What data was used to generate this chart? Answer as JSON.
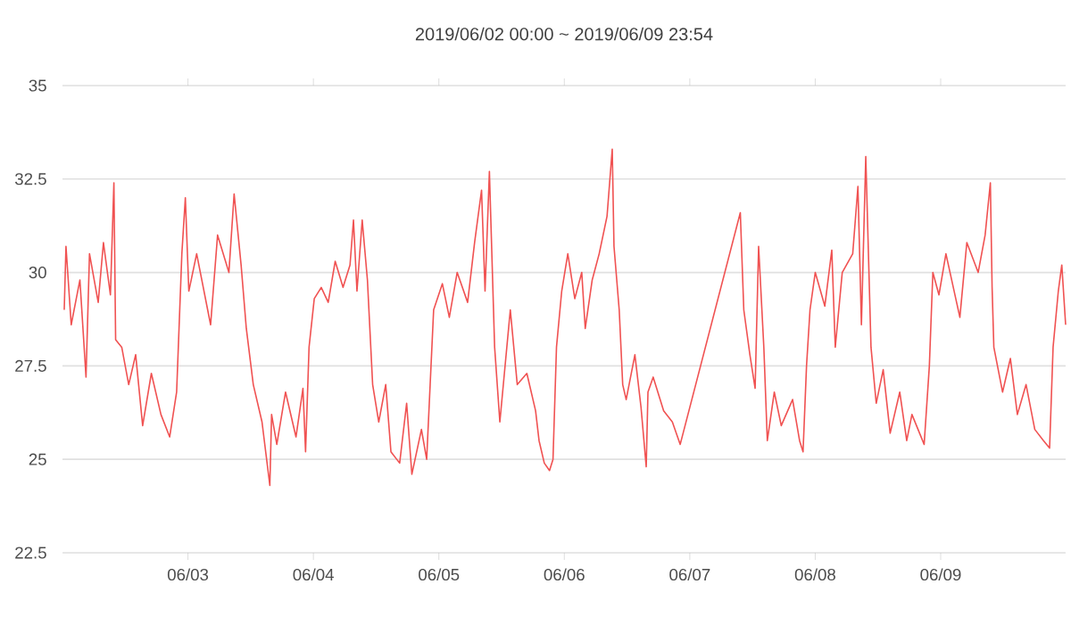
{
  "chart_data": {
    "type": "line",
    "title": "2019/06/02 00:00 ~ 2019/06/09 23:54",
    "xlim": [
      "2019-06-02T00:00",
      "2019-06-09T23:54"
    ],
    "xticks": [
      {
        "value": "2019-06-03T00:00",
        "label": "06/03"
      },
      {
        "value": "2019-06-04T00:00",
        "label": "06/04"
      },
      {
        "value": "2019-06-05T00:00",
        "label": "06/05"
      },
      {
        "value": "2019-06-06T00:00",
        "label": "06/06"
      },
      {
        "value": "2019-06-07T00:00",
        "label": "06/07"
      },
      {
        "value": "2019-06-08T00:00",
        "label": "06/08"
      },
      {
        "value": "2019-06-09T00:00",
        "label": "06/09"
      }
    ],
    "ylim": [
      22.5,
      35
    ],
    "yticks": [
      22.5,
      25,
      27.5,
      30,
      32.5,
      35
    ],
    "grid": "y",
    "series": [
      {
        "color": "#f05252",
        "x": [
          "2019-06-02T00:20",
          "2019-06-02T00:40",
          "2019-06-02T01:40",
          "2019-06-02T03:20",
          "2019-06-02T04:30",
          "2019-06-02T05:10",
          "2019-06-02T06:50",
          "2019-06-02T07:50",
          "2019-06-02T09:10",
          "2019-06-02T09:50",
          "2019-06-02T10:10",
          "2019-06-02T11:20",
          "2019-06-02T12:40",
          "2019-06-02T14:00",
          "2019-06-02T15:20",
          "2019-06-02T17:00",
          "2019-06-02T18:50",
          "2019-06-02T20:30",
          "2019-06-02T21:50",
          "2019-06-02T22:50",
          "2019-06-02T23:30",
          "2019-06-03T00:10",
          "2019-06-03T01:40",
          "2019-06-03T04:20",
          "2019-06-03T05:40",
          "2019-06-03T07:50",
          "2019-06-03T08:50",
          "2019-06-03T10:10",
          "2019-06-03T11:10",
          "2019-06-03T12:30",
          "2019-06-03T14:10",
          "2019-06-03T15:40",
          "2019-06-03T16:00",
          "2019-06-03T17:00",
          "2019-06-03T18:40",
          "2019-06-03T20:40",
          "2019-06-03T22:00",
          "2019-06-03T22:30",
          "2019-06-03T23:10",
          "2019-06-04T00:10",
          "2019-06-04T01:30",
          "2019-06-04T02:50",
          "2019-06-04T04:10",
          "2019-06-04T05:40",
          "2019-06-04T07:00",
          "2019-06-04T07:40",
          "2019-06-04T08:20",
          "2019-06-04T09:20",
          "2019-06-04T10:20",
          "2019-06-04T11:20",
          "2019-06-04T12:30",
          "2019-06-04T13:50",
          "2019-06-04T14:50",
          "2019-06-04T16:30",
          "2019-06-04T17:50",
          "2019-06-04T18:50",
          "2019-06-04T20:40",
          "2019-06-04T21:40",
          "2019-06-04T22:20",
          "2019-06-04T23:00",
          "2019-06-05T00:40",
          "2019-06-05T02:00",
          "2019-06-05T03:30",
          "2019-06-05T05:30",
          "2019-06-05T06:50",
          "2019-06-05T08:10",
          "2019-06-05T08:50",
          "2019-06-05T09:40",
          "2019-06-05T10:40",
          "2019-06-05T11:40",
          "2019-06-05T13:40",
          "2019-06-05T15:00",
          "2019-06-05T16:50",
          "2019-06-05T18:30",
          "2019-06-05T19:10",
          "2019-06-05T20:10",
          "2019-06-05T21:10",
          "2019-06-05T21:50",
          "2019-06-05T22:30",
          "2019-06-05T23:30",
          "2019-06-06T00:40",
          "2019-06-06T02:00",
          "2019-06-06T03:20",
          "2019-06-06T04:00",
          "2019-06-06T05:20",
          "2019-06-06T06:40",
          "2019-06-06T08:10",
          "2019-06-06T09:10",
          "2019-06-06T09:30",
          "2019-06-06T10:30",
          "2019-06-06T11:10",
          "2019-06-06T11:50",
          "2019-06-06T13:30",
          "2019-06-06T14:40",
          "2019-06-06T15:40",
          "2019-06-06T16:00",
          "2019-06-06T17:00",
          "2019-06-06T19:00",
          "2019-06-06T20:40",
          "2019-06-06T22:10",
          "2019-06-07T09:40",
          "2019-06-07T10:20",
          "2019-06-07T11:30",
          "2019-06-07T12:30",
          "2019-06-07T13:10",
          "2019-06-07T14:10",
          "2019-06-07T14:50",
          "2019-06-07T16:10",
          "2019-06-07T17:30",
          "2019-06-07T19:40",
          "2019-06-07T21:00",
          "2019-06-07T21:40",
          "2019-06-07T22:20",
          "2019-06-07T23:00",
          "2019-06-08T00:00",
          "2019-06-08T01:50",
          "2019-06-08T03:10",
          "2019-06-08T03:50",
          "2019-06-08T05:10",
          "2019-06-08T07:10",
          "2019-06-08T08:10",
          "2019-06-08T08:50",
          "2019-06-08T09:40",
          "2019-06-08T10:40",
          "2019-06-08T11:40",
          "2019-06-08T13:00",
          "2019-06-08T14:20",
          "2019-06-08T16:10",
          "2019-06-08T17:30",
          "2019-06-08T18:30",
          "2019-06-08T20:50",
          "2019-06-08T21:50",
          "2019-06-08T22:30",
          "2019-06-08T23:40",
          "2019-06-09T01:00",
          "2019-06-09T03:40",
          "2019-06-09T05:00",
          "2019-06-09T07:10",
          "2019-06-09T08:30",
          "2019-06-09T09:30",
          "2019-06-09T09:50",
          "2019-06-09T10:10",
          "2019-06-09T11:50",
          "2019-06-09T13:20",
          "2019-06-09T14:40",
          "2019-06-09T16:20",
          "2019-06-09T18:00",
          "2019-06-09T19:40",
          "2019-06-09T20:50",
          "2019-06-09T21:30",
          "2019-06-09T22:30",
          "2019-06-09T23:10",
          "2019-06-09T23:54"
        ],
        "values": [
          29.0,
          30.7,
          28.6,
          29.8,
          27.2,
          30.5,
          29.2,
          30.8,
          29.4,
          32.4,
          28.2,
          28.0,
          27.0,
          27.8,
          25.9,
          27.3,
          26.2,
          25.6,
          26.8,
          30.5,
          32.0,
          29.5,
          30.5,
          28.6,
          31.0,
          30.0,
          32.1,
          30.2,
          28.5,
          27.0,
          26.0,
          24.3,
          26.2,
          25.4,
          26.8,
          25.6,
          26.9,
          25.2,
          28.0,
          29.3,
          29.6,
          29.2,
          30.3,
          29.6,
          30.2,
          31.4,
          29.5,
          31.4,
          29.8,
          27.0,
          26.0,
          27.0,
          25.2,
          24.9,
          26.5,
          24.6,
          25.8,
          25.0,
          27.0,
          29.0,
          29.7,
          28.8,
          30.0,
          29.2,
          30.8,
          32.2,
          29.5,
          32.7,
          28.0,
          26.0,
          29.0,
          27.0,
          27.3,
          26.3,
          25.5,
          24.9,
          24.7,
          25.0,
          28.0,
          29.5,
          30.5,
          29.3,
          30.0,
          28.5,
          29.8,
          30.5,
          31.5,
          33.3,
          30.7,
          29.0,
          27.0,
          26.6,
          27.8,
          26.4,
          24.8,
          26.8,
          27.2,
          26.3,
          26.0,
          25.4,
          31.6,
          29.0,
          27.8,
          26.9,
          30.7,
          28.0,
          25.5,
          26.8,
          25.9,
          26.6,
          25.5,
          25.2,
          27.5,
          29.0,
          30.0,
          29.1,
          30.6,
          28.0,
          30.0,
          30.5,
          32.3,
          28.6,
          33.1,
          28.0,
          26.5,
          27.4,
          25.7,
          26.8,
          25.5,
          26.2,
          25.4,
          27.5,
          30.0,
          29.4,
          30.5,
          28.8,
          30.8,
          30.0,
          31.0,
          32.4,
          29.6,
          28.0,
          26.8,
          27.7,
          26.2,
          27.0,
          25.8,
          25.5,
          25.3,
          28.0,
          29.5,
          30.2,
          28.6
        ]
      }
    ]
  }
}
